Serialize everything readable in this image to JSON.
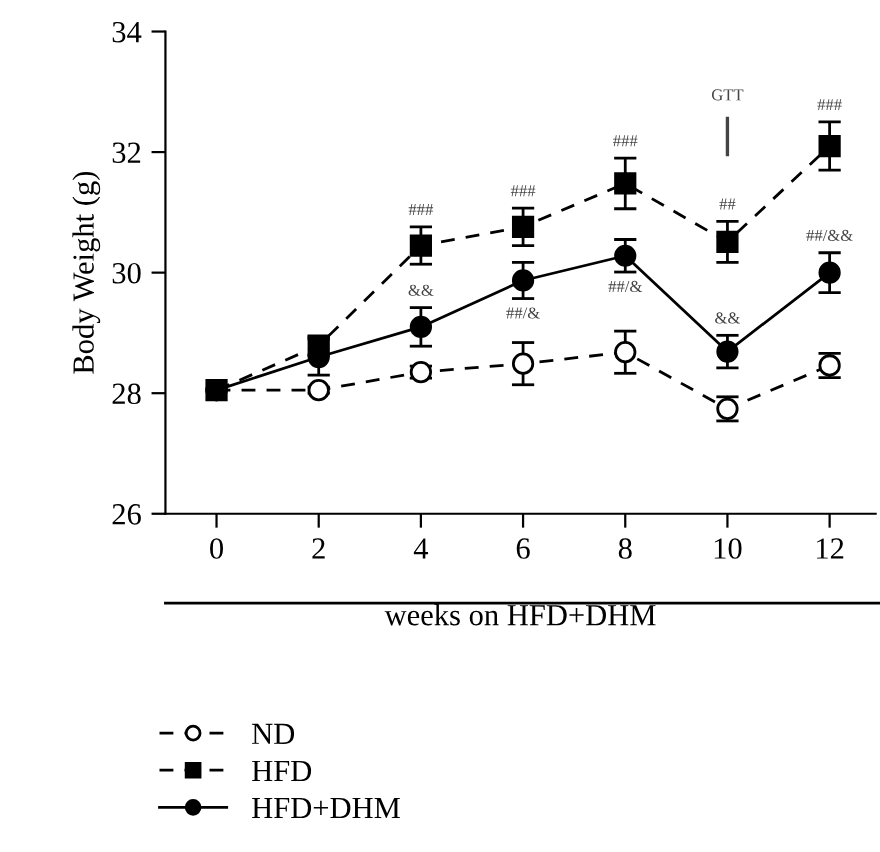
{
  "chart_data": {
    "type": "line",
    "xlabel": "weeks on HFD+DHM",
    "ylabel": "Body Weight (g)",
    "x": [
      0,
      2,
      4,
      6,
      8,
      10,
      12
    ],
    "xlim": [
      -1,
      12.9
    ],
    "xticks": [
      0,
      2,
      4,
      6,
      8,
      10,
      12
    ],
    "ylim": [
      26,
      34
    ],
    "yticks": [
      26,
      28,
      30,
      32,
      34
    ],
    "grid": false,
    "legend": "bottom",
    "series": [
      {
        "name": "ND",
        "color": "#000000",
        "marker": "circle",
        "line_style": "dashed",
        "values": [
          28.05,
          28.05,
          28.35,
          28.49,
          28.68,
          27.74,
          28.46
        ],
        "errors": [
          null,
          0.05,
          0.1,
          0.35,
          0.35,
          0.2,
          0.2
        ]
      },
      {
        "name": "HFD",
        "color": "#000000",
        "marker": "square",
        "line_style": "dashed",
        "values": [
          28.05,
          28.79,
          30.45,
          30.76,
          31.48,
          30.51,
          32.1
        ],
        "errors": [
          null,
          0.15,
          0.31,
          0.31,
          0.42,
          0.34,
          0.4
        ]
      },
      {
        "name": "HFD+DHM",
        "color": "#000000",
        "marker": "circle",
        "line_style": "solid",
        "values": [
          28.05,
          28.6,
          29.1,
          29.87,
          30.28,
          28.69,
          30.0
        ],
        "errors": [
          null,
          0.3,
          0.32,
          0.3,
          0.27,
          0.27,
          0.33
        ]
      }
    ],
    "annotations": [
      {
        "text": "###",
        "x": 4,
        "y": 30.76
      },
      {
        "text": "###",
        "x": 6,
        "y": 31.07
      },
      {
        "text": "###",
        "x": 8,
        "y": 31.9
      },
      {
        "text": "##",
        "x": 10,
        "y": 30.85
      },
      {
        "text": "###",
        "x": 12,
        "y": 32.5
      },
      {
        "text": "&&",
        "x": 4,
        "y": 29.42
      },
      {
        "text": "##/&",
        "x": 6,
        "y": 29.57
      },
      {
        "text": "##/&",
        "x": 8,
        "y": 30.01
      },
      {
        "text": "&&",
        "x": 10,
        "y": 28.96
      },
      {
        "text": "##/&&",
        "x": 12,
        "y": 30.33
      }
    ],
    "ref_lines": [
      {
        "axis": "x",
        "value": 10,
        "label": "GTT",
        "color": "#444444"
      }
    ]
  }
}
